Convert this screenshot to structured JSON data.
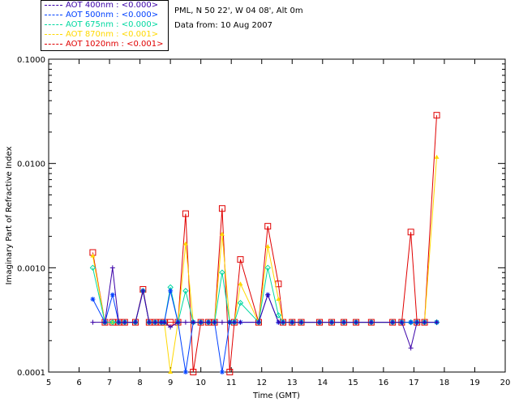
{
  "legend": {
    "items": [
      {
        "label": "AOT  400nm : <0.000>",
        "color": "#3a00a8"
      },
      {
        "label": "AOT  500nm : <0.000>",
        "color": "#0040ff"
      },
      {
        "label": "AOT  675nm : <0.000>",
        "color": "#00d8a0"
      },
      {
        "label": "AOT  870nm : <0.001>",
        "color": "#ffd800"
      },
      {
        "label": "AOT 1020nm : <0.001>",
        "color": "#e00000"
      }
    ]
  },
  "info": {
    "site": "PML, N 50 22', W 04 08', Alt 0m",
    "date": "Data from: 10 Aug 2007"
  },
  "chart_data": {
    "type": "line",
    "title": "",
    "xlabel": "Time (GMT)",
    "ylabel": "Imaginary Part of Refractive Index",
    "xlim": [
      5,
      20
    ],
    "ylim": [
      0.0001,
      0.1
    ],
    "yscale": "log",
    "xticks": [
      5,
      6,
      7,
      8,
      9,
      10,
      11,
      12,
      13,
      14,
      15,
      16,
      17,
      18,
      19,
      20
    ],
    "yticks": [
      0.0001,
      0.001,
      0.01,
      0.1
    ],
    "ytick_labels": [
      "0.0001",
      "0.0010",
      "0.0100",
      "0.1000"
    ],
    "x": [
      6.45,
      6.85,
      7.1,
      7.3,
      7.5,
      7.85,
      8.1,
      8.3,
      8.5,
      8.7,
      8.8,
      9.0,
      9.25,
      9.5,
      9.75,
      10.0,
      10.25,
      10.45,
      10.7,
      10.95,
      11.1,
      11.3,
      11.9,
      12.2,
      12.55,
      12.7,
      13.0,
      13.3,
      13.9,
      14.3,
      14.7,
      15.1,
      15.6,
      16.3,
      16.6,
      16.9,
      17.1,
      17.35,
      17.75
    ],
    "series": [
      {
        "name": "AOT  400nm",
        "marker": "plus",
        "values": [
          0.0003,
          0.0003,
          0.001,
          0.0003,
          0.0003,
          0.0003,
          0.0006,
          0.0003,
          0.0003,
          0.0003,
          0.0003,
          0.00027,
          0.0003,
          0.0003,
          0.0003,
          0.0003,
          0.0003,
          0.0003,
          0.0003,
          0.0003,
          0.0003,
          0.0003,
          0.0003,
          0.00055,
          0.0003,
          0.0003,
          0.0003,
          0.0003,
          0.0003,
          0.0003,
          0.0003,
          0.0003,
          0.0003,
          0.0003,
          0.0003,
          0.00017,
          0.0003,
          0.0003,
          0.0003
        ]
      },
      {
        "name": "AOT  500nm",
        "marker": "asterisk",
        "values": [
          0.0005,
          0.0003,
          0.00055,
          0.0003,
          0.0003,
          0.0003,
          0.0006,
          0.0003,
          0.0003,
          0.0003,
          0.0003,
          0.0006,
          0.0003,
          0.0001,
          0.0003,
          0.0003,
          0.0003,
          0.0003,
          0.0001,
          0.0003,
          0.0003,
          0.0003,
          0.0003,
          0.00055,
          0.0003,
          0.0003,
          0.0003,
          0.0003,
          0.0003,
          0.0003,
          0.0003,
          0.0003,
          0.0003,
          0.0003,
          0.0003,
          0.0003,
          0.0003,
          0.0003,
          0.0003
        ]
      },
      {
        "name": "AOT  675nm",
        "marker": "diamond",
        "values": [
          0.001,
          0.0003,
          0.0003,
          0.0003,
          0.0003,
          0.0003,
          0.0006,
          0.0003,
          0.0003,
          0.0003,
          0.0003,
          0.00065,
          0.0003,
          0.0006,
          0.0003,
          0.0003,
          0.0003,
          0.0003,
          0.0009,
          0.0003,
          0.0003,
          0.00046,
          0.0003,
          0.001,
          0.00035,
          0.0003,
          0.0003,
          0.0003,
          0.0003,
          0.0003,
          0.0003,
          0.0003,
          0.0003,
          0.0003,
          0.0003,
          0.0003,
          0.0003,
          0.0003,
          0.0003
        ]
      },
      {
        "name": "AOT  870nm",
        "marker": "triangle",
        "values": [
          0.0013,
          0.0003,
          0.0003,
          0.0003,
          0.0003,
          0.0003,
          0.0006,
          0.0003,
          0.0003,
          0.0003,
          0.0003,
          0.0001,
          0.0003,
          0.0017,
          0.0003,
          0.0003,
          0.0003,
          0.0003,
          0.0021,
          0.0003,
          0.0003,
          0.0007,
          0.0003,
          0.0016,
          0.0005,
          0.0003,
          0.0003,
          0.0003,
          0.0003,
          0.0003,
          0.0003,
          0.0003,
          0.0003,
          0.0003,
          0.0003,
          0.0003,
          0.0003,
          0.0003,
          0.0115
        ]
      },
      {
        "name": "AOT 1020nm",
        "marker": "square",
        "values": [
          0.0014,
          0.0003,
          0.0003,
          0.0003,
          0.0003,
          0.0003,
          0.00062,
          0.0003,
          0.0003,
          0.0003,
          0.0003,
          0.0003,
          0.0003,
          0.0033,
          0.0001,
          0.0003,
          0.0003,
          0.0003,
          0.0037,
          0.0001,
          0.0003,
          0.0012,
          0.0003,
          0.0025,
          0.0007,
          0.0003,
          0.0003,
          0.0003,
          0.0003,
          0.0003,
          0.0003,
          0.0003,
          0.0003,
          0.0003,
          0.0003,
          0.0022,
          0.0003,
          0.0003,
          0.029
        ]
      }
    ]
  }
}
